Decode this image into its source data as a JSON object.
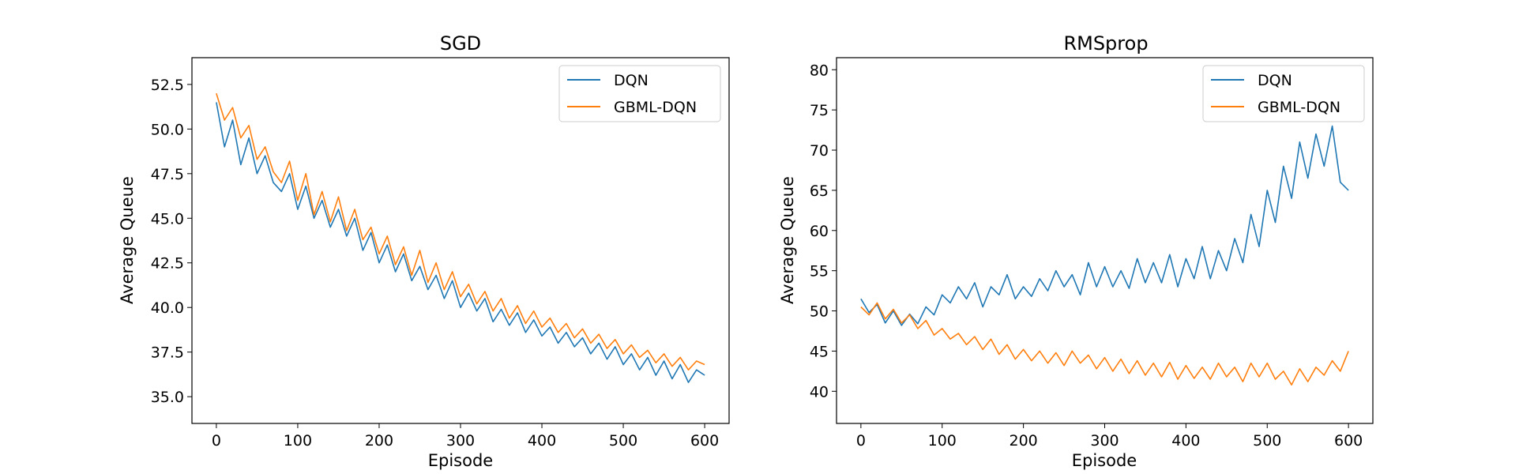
{
  "colors": {
    "dqn": "#1f77b4",
    "gbml": "#ff7f0e",
    "axis": "#000000",
    "background": "#ffffff"
  },
  "chart_data": [
    {
      "type": "line",
      "title": "SGD",
      "xlabel": "Episode",
      "ylabel": "Average Queue",
      "xlim": [
        -30,
        630
      ],
      "ylim": [
        33.5,
        54.0
      ],
      "xticks": [
        0,
        100,
        200,
        300,
        400,
        500,
        600
      ],
      "xtick_labels": [
        "0",
        "100",
        "200",
        "300",
        "400",
        "500",
        "600"
      ],
      "yticks": [
        35.0,
        37.5,
        40.0,
        42.5,
        45.0,
        47.5,
        50.0,
        52.5
      ],
      "ytick_labels": [
        "35.0",
        "37.5",
        "40.0",
        "42.5",
        "45.0",
        "47.5",
        "50.0",
        "52.5"
      ],
      "grid": false,
      "legend_position": "top-right",
      "series": [
        {
          "name": "DQN",
          "color": "#1f77b4",
          "x": [
            0,
            10,
            20,
            30,
            40,
            50,
            60,
            70,
            80,
            90,
            100,
            110,
            120,
            130,
            140,
            150,
            160,
            170,
            180,
            190,
            200,
            210,
            220,
            230,
            240,
            250,
            260,
            270,
            280,
            290,
            300,
            310,
            320,
            330,
            340,
            350,
            360,
            370,
            380,
            390,
            400,
            410,
            420,
            430,
            440,
            450,
            460,
            470,
            480,
            490,
            500,
            510,
            520,
            530,
            540,
            550,
            560,
            570,
            580,
            590,
            600
          ],
          "y": [
            51.5,
            49.0,
            50.5,
            48.0,
            49.5,
            47.5,
            48.5,
            47.0,
            46.5,
            47.5,
            45.5,
            46.8,
            45.0,
            46.0,
            44.5,
            45.5,
            44.0,
            45.0,
            43.2,
            44.2,
            42.5,
            43.5,
            42.0,
            43.0,
            41.5,
            42.3,
            41.0,
            41.8,
            40.5,
            41.5,
            40.0,
            40.8,
            39.8,
            40.5,
            39.2,
            39.9,
            39.0,
            39.7,
            38.6,
            39.3,
            38.4,
            38.9,
            38.0,
            38.6,
            37.8,
            38.3,
            37.4,
            38.0,
            37.1,
            37.8,
            36.8,
            37.4,
            36.5,
            37.2,
            36.2,
            37.0,
            36.0,
            36.8,
            35.8,
            36.5,
            36.2
          ]
        },
        {
          "name": "GBML-DQN",
          "color": "#ff7f0e",
          "x": [
            0,
            10,
            20,
            30,
            40,
            50,
            60,
            70,
            80,
            90,
            100,
            110,
            120,
            130,
            140,
            150,
            160,
            170,
            180,
            190,
            200,
            210,
            220,
            230,
            240,
            250,
            260,
            270,
            280,
            290,
            300,
            310,
            320,
            330,
            340,
            350,
            360,
            370,
            380,
            390,
            400,
            410,
            420,
            430,
            440,
            450,
            460,
            470,
            480,
            490,
            500,
            510,
            520,
            530,
            540,
            550,
            560,
            570,
            580,
            590,
            600
          ],
          "y": [
            52.0,
            50.5,
            51.2,
            49.5,
            50.2,
            48.3,
            49.0,
            47.6,
            47.0,
            48.2,
            46.0,
            47.5,
            45.2,
            46.5,
            44.8,
            46.2,
            44.3,
            45.5,
            43.8,
            44.5,
            43.0,
            44.0,
            42.4,
            43.4,
            41.8,
            43.2,
            41.4,
            42.5,
            41.0,
            42.0,
            40.6,
            41.3,
            40.2,
            40.9,
            39.8,
            40.5,
            39.4,
            40.1,
            39.1,
            39.8,
            38.9,
            39.4,
            38.6,
            39.1,
            38.3,
            38.8,
            38.0,
            38.5,
            37.7,
            38.2,
            37.4,
            37.9,
            37.2,
            37.6,
            36.9,
            37.4,
            36.7,
            37.2,
            36.5,
            37.0,
            36.8
          ]
        }
      ]
    },
    {
      "type": "line",
      "title": "RMSprop",
      "xlabel": "Episode",
      "ylabel": "Average Queue",
      "xlim": [
        -30,
        630
      ],
      "ylim": [
        36.0,
        81.5
      ],
      "xticks": [
        0,
        100,
        200,
        300,
        400,
        500,
        600
      ],
      "xtick_labels": [
        "0",
        "100",
        "200",
        "300",
        "400",
        "500",
        "600"
      ],
      "yticks": [
        40,
        45,
        50,
        55,
        60,
        65,
        70,
        75,
        80
      ],
      "ytick_labels": [
        "40",
        "45",
        "50",
        "55",
        "60",
        "65",
        "70",
        "75",
        "80"
      ],
      "grid": false,
      "legend_position": "top-right",
      "series": [
        {
          "name": "DQN",
          "color": "#1f77b4",
          "x": [
            0,
            10,
            20,
            30,
            40,
            50,
            60,
            70,
            80,
            90,
            100,
            110,
            120,
            130,
            140,
            150,
            160,
            170,
            180,
            190,
            200,
            210,
            220,
            230,
            240,
            250,
            260,
            270,
            280,
            290,
            300,
            310,
            320,
            330,
            340,
            350,
            360,
            370,
            380,
            390,
            400,
            410,
            420,
            430,
            440,
            450,
            460,
            470,
            480,
            490,
            500,
            510,
            520,
            530,
            540,
            550,
            560,
            570,
            580,
            590,
            600
          ],
          "y": [
            51.5,
            49.8,
            50.8,
            48.5,
            50.0,
            48.2,
            49.6,
            48.4,
            50.5,
            49.5,
            52.0,
            51.0,
            53.0,
            51.5,
            53.5,
            50.5,
            53.0,
            52.0,
            54.5,
            51.5,
            53.0,
            51.8,
            54.0,
            52.5,
            55.0,
            53.0,
            54.5,
            52.0,
            56.0,
            53.0,
            55.5,
            53.0,
            55.0,
            52.8,
            56.5,
            53.5,
            56.0,
            53.5,
            57.0,
            53.0,
            56.5,
            54.0,
            58.0,
            54.0,
            57.5,
            55.0,
            59.0,
            56.0,
            62.0,
            58.0,
            65.0,
            61.0,
            68.0,
            64.0,
            71.0,
            66.5,
            72.0,
            68.0,
            73.0,
            66.0,
            65.0
          ]
        },
        {
          "name": "GBML-DQN",
          "color": "#ff7f0e",
          "x": [
            0,
            10,
            20,
            30,
            40,
            50,
            60,
            70,
            80,
            90,
            100,
            110,
            120,
            130,
            140,
            150,
            160,
            170,
            180,
            190,
            200,
            210,
            220,
            230,
            240,
            250,
            260,
            270,
            280,
            290,
            300,
            310,
            320,
            330,
            340,
            350,
            360,
            370,
            380,
            390,
            400,
            410,
            420,
            430,
            440,
            450,
            460,
            470,
            480,
            490,
            500,
            510,
            520,
            530,
            540,
            550,
            560,
            570,
            580,
            590,
            600
          ],
          "y": [
            50.5,
            49.5,
            51.0,
            49.0,
            50.2,
            48.5,
            49.5,
            47.8,
            48.8,
            47.0,
            47.8,
            46.5,
            47.2,
            45.8,
            46.8,
            45.2,
            46.5,
            44.6,
            45.8,
            44.0,
            45.2,
            43.8,
            45.0,
            43.5,
            44.8,
            43.2,
            45.0,
            43.5,
            44.5,
            42.8,
            44.2,
            42.5,
            44.0,
            42.2,
            43.8,
            42.0,
            43.5,
            41.8,
            43.6,
            41.5,
            43.2,
            41.6,
            43.0,
            41.5,
            43.5,
            41.8,
            43.0,
            41.2,
            43.5,
            41.8,
            43.5,
            41.5,
            42.5,
            40.8,
            42.8,
            41.2,
            43.0,
            42.0,
            43.8,
            42.5,
            45.0
          ]
        }
      ]
    }
  ]
}
